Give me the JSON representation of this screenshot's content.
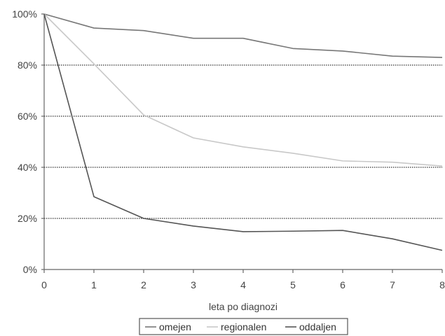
{
  "chart_data": {
    "type": "line",
    "xlabel": "leta po diagnozi",
    "ylabel": "",
    "x": [
      0,
      1,
      2,
      3,
      4,
      5,
      6,
      7,
      8
    ],
    "xlim": [
      0,
      8
    ],
    "ylim": [
      0,
      100
    ],
    "y_ticks": [
      "0%",
      "20%",
      "40%",
      "60%",
      "80%",
      "100%"
    ],
    "x_ticks": [
      "0",
      "1",
      "2",
      "3",
      "4",
      "5",
      "6",
      "7",
      "8"
    ],
    "grid": "horizontal dotted",
    "legend_position": "bottom",
    "series": [
      {
        "name": "omejen",
        "color": "#777777",
        "values": [
          100,
          94.5,
          93.5,
          90.5,
          90.5,
          86.5,
          85.5,
          83.5,
          83
        ]
      },
      {
        "name": "regionalen",
        "color": "#c8c8c8",
        "values": [
          100,
          80.5,
          60.5,
          51.5,
          48,
          45.5,
          42.5,
          42,
          40.5
        ]
      },
      {
        "name": "oddaljen",
        "color": "#555555",
        "values": [
          100,
          28.5,
          20,
          17,
          14.8,
          15,
          15.3,
          12,
          7.5
        ]
      }
    ]
  }
}
